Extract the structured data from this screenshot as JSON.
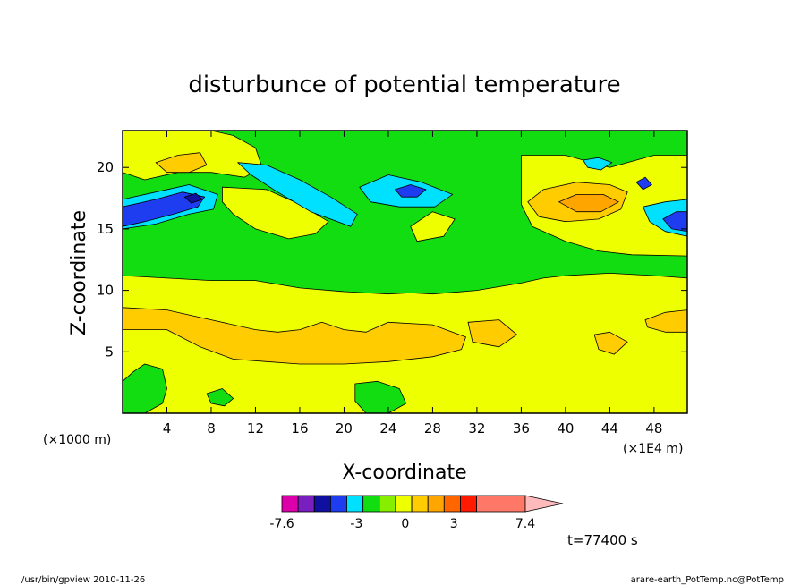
{
  "chart_data": {
    "type": "heatmap",
    "title": "disturbunce of potential temperature",
    "xlabel": "X-coordinate",
    "ylabel": "Z-coordinate",
    "x_unit": "(×1000 m)",
    "x_unit_right": "(×1E4 m)",
    "xlim": [
      0,
      51
    ],
    "ylim": [
      0,
      23
    ],
    "x_ticks": [
      "4",
      "8",
      "12",
      "16",
      "20",
      "24",
      "28",
      "32",
      "36",
      "40",
      "44",
      "48"
    ],
    "y_ticks": [
      "5",
      "10",
      "15",
      "20"
    ],
    "background_level_color": "#eeff00",
    "colorbar": {
      "colors": [
        "#dd00aa",
        "#7a1fbf",
        "#1010a0",
        "#1e3cf0",
        "#00e0ff",
        "#11dd11",
        "#88ee00",
        "#eeff00",
        "#ffcc00",
        "#ffa500",
        "#ff6600",
        "#ff1a00",
        "#ff7766",
        "#ffbbbb"
      ],
      "tick_labels": [
        "-7.6",
        "-3",
        "0",
        "3",
        "7.4"
      ],
      "extend": "max"
    },
    "regions": [
      {
        "name": "upper-green-band",
        "color": "#11dd11",
        "x": [
          0,
          4,
          8,
          12,
          16,
          20,
          22,
          24,
          26,
          28,
          32,
          36,
          38,
          40,
          44,
          48,
          51
        ],
        "z_top": [
          23,
          23,
          23,
          23,
          23,
          23,
          23,
          23,
          23,
          23,
          23,
          23,
          23,
          23,
          23,
          23,
          23
        ],
        "z_bottom": [
          11.2,
          11.0,
          10.8,
          10.8,
          10.2,
          9.9,
          9.8,
          9.7,
          9.8,
          9.7,
          10.0,
          10.6,
          11.0,
          11.2,
          11.4,
          11.2,
          11.0
        ]
      },
      {
        "name": "top-right-yellow",
        "color": "#eeff00",
        "points": [
          [
            36,
            21
          ],
          [
            40,
            21
          ],
          [
            44,
            20
          ],
          [
            48,
            21
          ],
          [
            51,
            21
          ],
          [
            51,
            12.8
          ],
          [
            46,
            12.9
          ],
          [
            43,
            13.2
          ],
          [
            40,
            14.0
          ],
          [
            37,
            15.2
          ],
          [
            36,
            17
          ]
        ]
      },
      {
        "name": "top-left-yellow",
        "color": "#eeff00",
        "points": [
          [
            0,
            23
          ],
          [
            8,
            23
          ],
          [
            10,
            22.6
          ],
          [
            12,
            21.6
          ],
          [
            12.6,
            20
          ],
          [
            11,
            19.2
          ],
          [
            8,
            19.6
          ],
          [
            5,
            19.6
          ],
          [
            2,
            19.0
          ],
          [
            0,
            19.6
          ]
        ]
      },
      {
        "name": "left-orange-upper",
        "color": "#ffcc00",
        "points": [
          [
            3,
            20.4
          ],
          [
            5,
            21.0
          ],
          [
            7,
            21.2
          ],
          [
            7.6,
            20.2
          ],
          [
            6,
            19.6
          ],
          [
            4,
            19.6
          ]
        ]
      },
      {
        "name": "mid-yellow-plume",
        "color": "#eeff00",
        "points": [
          [
            9,
            18.4
          ],
          [
            13,
            18.2
          ],
          [
            16,
            17.0
          ],
          [
            18.6,
            15.6
          ],
          [
            17.4,
            14.6
          ],
          [
            15,
            14.2
          ],
          [
            12,
            15.0
          ],
          [
            10,
            16.2
          ],
          [
            9,
            17.2
          ]
        ]
      },
      {
        "name": "center-yellow-plume",
        "color": "#eeff00",
        "points": [
          [
            26,
            15.2
          ],
          [
            28,
            16.4
          ],
          [
            30,
            15.8
          ],
          [
            29,
            14.4
          ],
          [
            26.6,
            14.0
          ]
        ]
      },
      {
        "name": "cyan-left",
        "color": "#00e0ff",
        "points": [
          [
            0,
            17.4
          ],
          [
            3,
            18.0
          ],
          [
            6,
            18.6
          ],
          [
            8.6,
            17.8
          ],
          [
            8.2,
            16.6
          ],
          [
            6,
            16.2
          ],
          [
            3,
            15.4
          ],
          [
            0,
            15.0
          ]
        ]
      },
      {
        "name": "blue-left",
        "color": "#1e3cf0",
        "points": [
          [
            0,
            16.8
          ],
          [
            3,
            17.4
          ],
          [
            5.4,
            18.0
          ],
          [
            7.4,
            17.6
          ],
          [
            6.8,
            16.8
          ],
          [
            4.6,
            16.2
          ],
          [
            2,
            15.6
          ],
          [
            0,
            15.2
          ]
        ]
      },
      {
        "name": "navy-left",
        "color": "#1010a0",
        "points": [
          [
            5.6,
            17.6
          ],
          [
            6.6,
            17.9
          ],
          [
            7.2,
            17.4
          ],
          [
            6.2,
            17.1
          ]
        ]
      },
      {
        "name": "cyan-ribbon",
        "color": "#00e0ff",
        "points": [
          [
            10.4,
            20.4
          ],
          [
            13,
            20.2
          ],
          [
            16,
            19.0
          ],
          [
            18.8,
            17.6
          ],
          [
            21.2,
            16.2
          ],
          [
            20.6,
            15.2
          ],
          [
            17,
            16.4
          ],
          [
            14,
            18.0
          ],
          [
            11.6,
            19.4
          ]
        ]
      },
      {
        "name": "cyan-center",
        "color": "#00e0ff",
        "points": [
          [
            21.4,
            18.4
          ],
          [
            24,
            19.4
          ],
          [
            27,
            18.8
          ],
          [
            29.8,
            17.8
          ],
          [
            28.2,
            16.8
          ],
          [
            25,
            16.8
          ],
          [
            22.4,
            17.2
          ]
        ]
      },
      {
        "name": "blue-center",
        "color": "#1e3cf0",
        "points": [
          [
            24.6,
            18.2
          ],
          [
            26,
            18.6
          ],
          [
            27.4,
            18.2
          ],
          [
            26.6,
            17.6
          ],
          [
            25.2,
            17.6
          ]
        ]
      },
      {
        "name": "orange-right",
        "color": "#ffcc00",
        "points": [
          [
            36.6,
            17.2
          ],
          [
            38,
            18.2
          ],
          [
            41,
            18.8
          ],
          [
            44,
            18.6
          ],
          [
            45.6,
            18.0
          ],
          [
            45,
            16.6
          ],
          [
            43,
            15.8
          ],
          [
            40,
            15.6
          ],
          [
            37.6,
            16.0
          ]
        ]
      },
      {
        "name": "orange-right-inner",
        "color": "#ffa500",
        "points": [
          [
            39.4,
            17.2
          ],
          [
            41,
            17.8
          ],
          [
            43.4,
            17.8
          ],
          [
            44.8,
            17.2
          ],
          [
            43.2,
            16.4
          ],
          [
            41,
            16.4
          ]
        ]
      },
      {
        "name": "cyan-right",
        "color": "#00e0ff",
        "points": [
          [
            47,
            16.8
          ],
          [
            49,
            17.2
          ],
          [
            51,
            17.4
          ],
          [
            51,
            14.4
          ],
          [
            49,
            14.8
          ],
          [
            47.6,
            15.6
          ]
        ]
      },
      {
        "name": "blue-right",
        "color": "#1e3cf0",
        "points": [
          [
            48.8,
            15.8
          ],
          [
            50,
            16.4
          ],
          [
            51,
            16.4
          ],
          [
            51,
            14.8
          ],
          [
            49.6,
            15.0
          ]
        ]
      },
      {
        "name": "cyan-right-spot",
        "color": "#00e0ff",
        "points": [
          [
            41.6,
            20.6
          ],
          [
            43,
            20.8
          ],
          [
            44.2,
            20.4
          ],
          [
            43.2,
            19.8
          ],
          [
            42,
            20.0
          ]
        ]
      },
      {
        "name": "blue-right-spot",
        "color": "#1e3cf0",
        "points": [
          [
            46.4,
            18.8
          ],
          [
            47.2,
            19.2
          ],
          [
            47.8,
            18.6
          ],
          [
            47,
            18.2
          ]
        ]
      },
      {
        "name": "lower-orange-band",
        "color": "#ffcc00",
        "points": [
          [
            0,
            8.6
          ],
          [
            4,
            8.4
          ],
          [
            8,
            7.6
          ],
          [
            12,
            6.8
          ],
          [
            14,
            6.6
          ],
          [
            16,
            6.8
          ],
          [
            18,
            7.4
          ],
          [
            20,
            6.8
          ],
          [
            22,
            6.6
          ],
          [
            24,
            7.4
          ],
          [
            28,
            7.2
          ],
          [
            31,
            6.2
          ],
          [
            30.6,
            5.2
          ],
          [
            28,
            4.6
          ],
          [
            24,
            4.2
          ],
          [
            20,
            4.0
          ],
          [
            16,
            4.0
          ],
          [
            13,
            4.2
          ],
          [
            10,
            4.4
          ],
          [
            7,
            5.4
          ],
          [
            4,
            6.8
          ],
          [
            0,
            6.8
          ]
        ]
      },
      {
        "name": "right-orange-blob",
        "color": "#ffcc00",
        "points": [
          [
            31.2,
            7.4
          ],
          [
            34,
            7.6
          ],
          [
            35.6,
            6.4
          ],
          [
            34,
            5.4
          ],
          [
            31.6,
            5.8
          ]
        ]
      },
      {
        "name": "right-orange-small",
        "color": "#ffcc00",
        "points": [
          [
            42.6,
            6.4
          ],
          [
            44,
            6.6
          ],
          [
            45.6,
            5.8
          ],
          [
            44.4,
            4.8
          ],
          [
            43,
            5.2
          ]
        ]
      },
      {
        "name": "right-mid-orange",
        "color": "#ffcc00",
        "points": [
          [
            47.2,
            7.6
          ],
          [
            49,
            8.2
          ],
          [
            51,
            8.4
          ],
          [
            51,
            6.6
          ],
          [
            49,
            6.6
          ],
          [
            47.4,
            7.0
          ]
        ]
      },
      {
        "name": "green-bottom-left",
        "color": "#11dd11",
        "points": [
          [
            0,
            2.6
          ],
          [
            1,
            3.4
          ],
          [
            2,
            4.0
          ],
          [
            3.6,
            3.6
          ],
          [
            4,
            2.0
          ],
          [
            3.6,
            0.8
          ],
          [
            2,
            0
          ],
          [
            0,
            0
          ]
        ]
      },
      {
        "name": "green-bottom-mid",
        "color": "#11dd11",
        "points": [
          [
            21,
            2.4
          ],
          [
            23,
            2.6
          ],
          [
            25,
            2.0
          ],
          [
            25.6,
            0.8
          ],
          [
            24,
            0
          ],
          [
            22,
            0
          ],
          [
            21,
            1.0
          ]
        ]
      },
      {
        "name": "green-bottom-left2",
        "color": "#11dd11",
        "points": [
          [
            7.6,
            1.6
          ],
          [
            9,
            2.0
          ],
          [
            10,
            1.2
          ],
          [
            9.2,
            0.6
          ],
          [
            8,
            0.8
          ]
        ]
      }
    ]
  },
  "time_label": "t=77400 s",
  "footer_left": "/usr/bin/gpview  2010-11-26",
  "footer_right": "arare-earth_PotTemp.nc@PotTemp"
}
